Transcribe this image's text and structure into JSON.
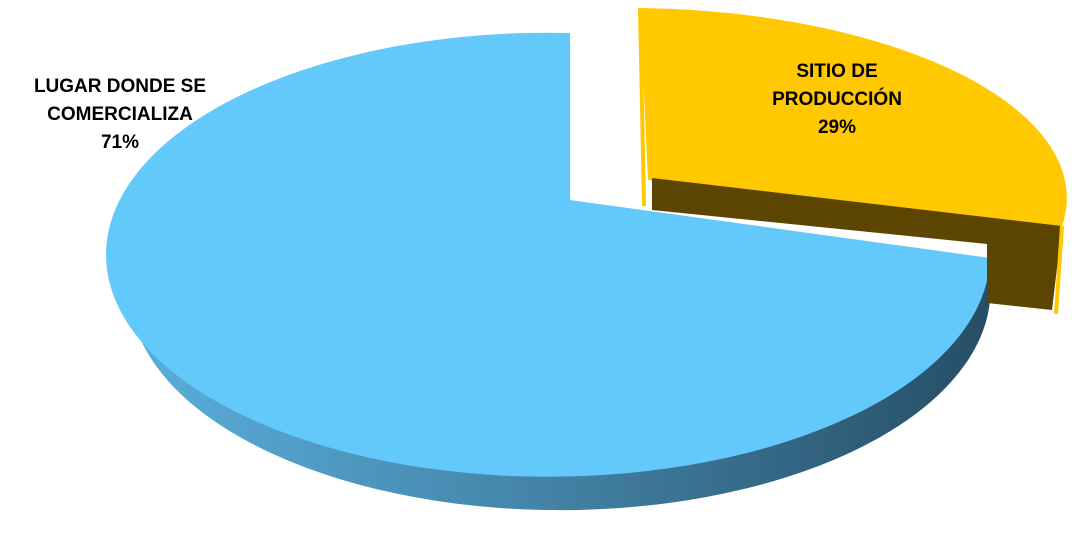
{
  "chart_data": {
    "type": "pie",
    "style": "3d-exploded",
    "title": "",
    "slices": [
      {
        "label_lines": [
          "LUGAR DONDE SE",
          "COMERCIALIZA"
        ],
        "value": 71,
        "value_label": "71%",
        "color": "#63C8FA",
        "side_color_light": "#5AAFDC",
        "side_color_dark": "#264E66"
      },
      {
        "label_lines": [
          "SITIO DE",
          "PRODUCCIÓN"
        ],
        "value": 29,
        "value_label": "29%",
        "color": "#FFC800",
        "side_color_light": "#6B5200",
        "side_color_dark": "#5C4500",
        "exploded": true
      }
    ],
    "legend": "none"
  }
}
